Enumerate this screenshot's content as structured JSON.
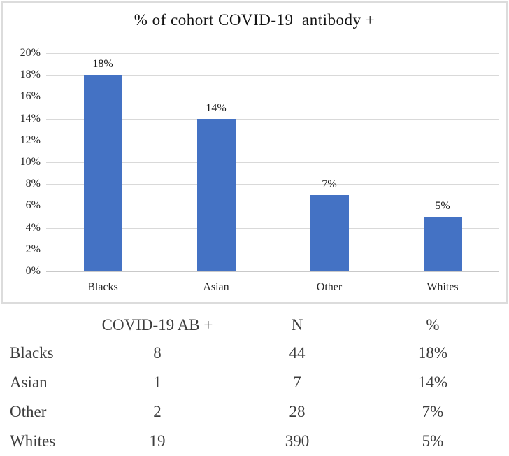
{
  "chart_data": {
    "type": "bar",
    "title": "% of cohort COVID-19  antibody +",
    "categories": [
      "Blacks",
      "Asian",
      "Other",
      "Whites"
    ],
    "values": [
      18,
      14,
      7,
      5
    ],
    "value_labels": [
      "18%",
      "14%",
      "7%",
      "5%"
    ],
    "xlabel": "",
    "ylabel": "",
    "ylim": [
      0,
      20
    ],
    "y_tick_step": 2,
    "y_tick_labels": [
      "20%",
      "18%",
      "16%",
      "14%",
      "12%",
      "10%",
      "8%",
      "6%",
      "4%",
      "2%",
      "0%"
    ],
    "grid": true,
    "legend": false,
    "colors": {
      "bar": "#4472C4",
      "gridline": "#d9d9d9",
      "axis_line": "#c9c9c9",
      "chart_border": "#dcdcdc",
      "title_text": "#141414",
      "tick_text": "#262626",
      "table_text": "#3d3d3d"
    }
  },
  "table": {
    "headers": [
      "",
      "COVID-19 AB +",
      "N",
      "%"
    ],
    "rows": [
      [
        "Blacks",
        "8",
        "44",
        "18%"
      ],
      [
        "Asian",
        "1",
        "7",
        "14%"
      ],
      [
        "Other",
        "2",
        "28",
        "7%"
      ],
      [
        "Whites",
        "19",
        "390",
        "5%"
      ]
    ]
  }
}
